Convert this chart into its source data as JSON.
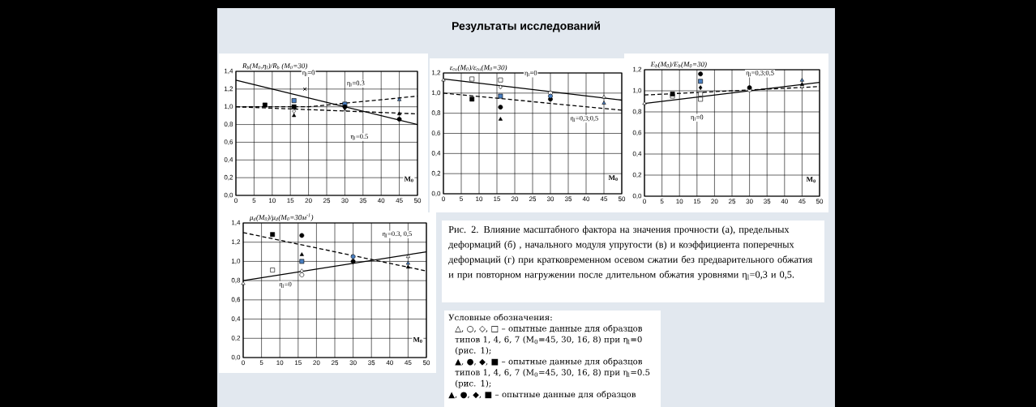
{
  "chart_data": [
    {
      "type": "scatter",
      "ylabel": "R$_{b}$(M$_{0}$,η$_{l}$)/R$_{b}$ (M$_{0}$=30)",
      "xlabel": "M$_{0}$",
      "xlim": [
        0,
        50
      ],
      "xticks": [
        0,
        5,
        10,
        15,
        20,
        25,
        30,
        35,
        40,
        45,
        50
      ],
      "ylim": [
        0,
        1.4
      ],
      "yticks": [
        {
          "value": 0,
          "label": "0,0"
        },
        {
          "value": 0.2,
          "label": "0,2"
        },
        {
          "value": 0.4,
          "label": "0,4"
        },
        {
          "value": 0.6,
          "label": "0,6"
        },
        {
          "value": 0.8,
          "label": "0,8"
        },
        {
          "value": 1.0,
          "label": "1,0"
        },
        {
          "value": 1.2,
          "label": "1,2"
        },
        {
          "value": 1.4,
          "label": "1,4"
        }
      ],
      "grid": true,
      "series": [
        {
          "type": "line",
          "color": "#000000",
          "line_style": "solid",
          "marker": "none",
          "x": [
            0,
            50
          ],
          "values": [
            1.3,
            0.8
          ]
        },
        {
          "type": "line",
          "color": "#000000",
          "line_style": "dashed",
          "marker": "none",
          "x": [
            0,
            20,
            50
          ],
          "values": [
            1.0,
            1.0,
            1.12
          ]
        },
        {
          "type": "line",
          "color": "#000000",
          "line_style": "dashed",
          "marker": "none",
          "x": [
            0,
            50
          ],
          "values": [
            1.0,
            0.92
          ]
        },
        {
          "color": "#000000",
          "marker": "square",
          "x": [
            8,
            16
          ],
          "values": [
            1.02,
            1.0
          ]
        },
        {
          "color": "#4a7fc1",
          "marker": "square",
          "x": [
            16,
            30
          ],
          "values": [
            1.07,
            1.03
          ]
        },
        {
          "color": "#000000",
          "marker": "triangle",
          "x": [
            16,
            45
          ],
          "values": [
            0.9,
            0.92
          ]
        },
        {
          "color": "#ffffff",
          "marker": "diamond",
          "x": [
            16
          ],
          "values": [
            0.95
          ]
        },
        {
          "color": "#000000",
          "marker": "cross",
          "x": [
            19,
            30
          ],
          "values": [
            1.2,
            0.97
          ]
        },
        {
          "color": "#000000",
          "marker": "circle",
          "x": [
            30,
            45
          ],
          "values": [
            1.0,
            0.86
          ]
        },
        {
          "color": "#4a7fc1",
          "marker": "triangle",
          "x": [
            45
          ],
          "values": [
            1.08
          ]
        }
      ],
      "annotations": [
        "η$_{l}$=0",
        "η$_{l}$=0.3",
        "η$_{l}$=0.5"
      ]
    },
    {
      "type": "scatter",
      "ylabel": "ε$_{cu}$(M$_{0}$)/ε$_{cu}$(M$_{0}$=30)",
      "xlabel": "M$_{0}$",
      "xlim": [
        0,
        50
      ],
      "xticks": [
        0,
        5,
        10,
        15,
        20,
        25,
        30,
        35,
        40,
        45,
        50
      ],
      "ylim": [
        0,
        1.2
      ],
      "yticks": [
        {
          "value": 0,
          "label": "0,0"
        },
        {
          "value": 0.2,
          "label": "0,2"
        },
        {
          "value": 0.4,
          "label": "0,4"
        },
        {
          "value": 0.6,
          "label": "0,6"
        },
        {
          "value": 0.8,
          "label": "0,8"
        },
        {
          "value": 1.0,
          "label": "1,0"
        },
        {
          "value": 1.2,
          "label": "1,2"
        }
      ],
      "grid": true,
      "series": [
        {
          "type": "line",
          "color": "#000000",
          "line_style": "solid",
          "marker": "none",
          "x": [
            0,
            50
          ],
          "values": [
            1.14,
            0.93
          ]
        },
        {
          "type": "line",
          "color": "#000000",
          "line_style": "dashed",
          "marker": "none",
          "x": [
            0,
            50
          ],
          "values": [
            1.0,
            0.83
          ]
        },
        {
          "color": "#ffffff",
          "marker": "square",
          "x": [
            8,
            16
          ],
          "values": [
            1.14,
            1.13
          ]
        },
        {
          "color": "#ffffff",
          "marker": "triangle",
          "x": [
            0,
            45
          ],
          "values": [
            1.13,
            0.96
          ]
        },
        {
          "color": "#ffffff",
          "marker": "diamond",
          "x": [
            16
          ],
          "values": [
            1.06
          ]
        },
        {
          "color": "#ffffff",
          "marker": "circle",
          "x": [
            30
          ],
          "values": [
            1.0
          ]
        },
        {
          "color": "#000000",
          "marker": "square",
          "x": [
            8
          ],
          "values": [
            0.94
          ]
        },
        {
          "color": "#4a7fc1",
          "marker": "square",
          "x": [
            16
          ],
          "values": [
            0.97
          ]
        },
        {
          "color": "#000000",
          "marker": "circle",
          "x": [
            16,
            30
          ],
          "values": [
            0.86,
            0.94
          ]
        },
        {
          "color": "#4a7fc1",
          "marker": "circle",
          "x": [
            30
          ],
          "values": [
            0.97
          ]
        },
        {
          "color": "#000000",
          "marker": "triangle",
          "x": [
            16
          ],
          "values": [
            0.74
          ]
        },
        {
          "color": "#4a7fc1",
          "marker": "triangle",
          "x": [
            45
          ],
          "values": [
            0.9
          ]
        }
      ],
      "annotations": [
        "η$_{l}$=0",
        "η$_{l}$=0,3;0,5"
      ]
    },
    {
      "type": "scatter",
      "ylabel": "E$_{b}$(M$_{0}$)/E$_{b}$(M$_{0}$=30)",
      "xlabel": "M$_{0}$",
      "xlim": [
        0,
        50
      ],
      "xticks": [
        0,
        5,
        10,
        15,
        20,
        25,
        30,
        35,
        40,
        45,
        50
      ],
      "ylim": [
        0,
        1.2
      ],
      "yticks": [
        {
          "value": 0,
          "label": "0,0"
        },
        {
          "value": 0.2,
          "label": "0,2"
        },
        {
          "value": 0.4,
          "label": "0,4"
        },
        {
          "value": 0.6,
          "label": "0,6"
        },
        {
          "value": 0.8,
          "label": "0,8"
        },
        {
          "value": 1.0,
          "label": "1,0"
        },
        {
          "value": 1.2,
          "label": "1,2"
        }
      ],
      "grid": true,
      "series": [
        {
          "type": "line",
          "color": "#000000",
          "line_style": "solid",
          "marker": "none",
          "x": [
            0,
            50
          ],
          "values": [
            0.88,
            1.08
          ]
        },
        {
          "type": "line",
          "color": "#000000",
          "line_style": "dashed",
          "marker": "none",
          "x": [
            0,
            50
          ],
          "values": [
            0.96,
            1.04
          ]
        },
        {
          "color": "#ffffff",
          "marker": "triangle",
          "x": [
            0,
            45
          ],
          "values": [
            0.88,
            1.04
          ]
        },
        {
          "color": "#ffffff",
          "marker": "square",
          "x": [
            8,
            16,
            16
          ],
          "values": [
            0.95,
            0.97,
            0.92
          ]
        },
        {
          "color": "#ffffff",
          "marker": "circle",
          "x": [
            30
          ],
          "values": [
            1.01
          ]
        },
        {
          "color": "#000000",
          "marker": "square",
          "x": [
            8
          ],
          "values": [
            0.97
          ]
        },
        {
          "color": "#000000",
          "marker": "circle",
          "x": [
            16,
            30
          ],
          "values": [
            1.16,
            1.03
          ]
        },
        {
          "color": "#4a7fc1",
          "marker": "square",
          "x": [
            16
          ],
          "values": [
            1.09
          ]
        },
        {
          "color": "#000000",
          "marker": "diamond",
          "x": [
            16
          ],
          "values": [
            1.03
          ]
        },
        {
          "color": "#4a7fc1",
          "marker": "triangle",
          "x": [
            45
          ],
          "values": [
            1.1
          ]
        },
        {
          "color": "#000000",
          "marker": "triangle",
          "x": [
            45
          ],
          "values": [
            1.06
          ]
        }
      ],
      "annotations": [
        "η$_{l}$=0,3;0,5",
        "η$_{l}$=0"
      ]
    },
    {
      "type": "scatter",
      "ylabel": "μ$_{d}$(M$_{0}$)/μ$_{d}$(M$_{0}$=30м$^{-1}$)",
      "xlabel": "M$_{0}$",
      "xlim": [
        0,
        50
      ],
      "xticks": [
        0,
        5,
        10,
        15,
        20,
        25,
        30,
        35,
        40,
        45,
        50
      ],
      "ylim": [
        0,
        1.4
      ],
      "yticks": [
        {
          "value": 0,
          "label": "0,0"
        },
        {
          "value": 0.2,
          "label": "0,2"
        },
        {
          "value": 0.4,
          "label": "0,4"
        },
        {
          "value": 0.6,
          "label": "0,6"
        },
        {
          "value": 0.8,
          "label": "0,8"
        },
        {
          "value": 1.0,
          "label": "1,0"
        },
        {
          "value": 1.2,
          "label": "1,2"
        },
        {
          "value": 1.4,
          "label": "1,4"
        }
      ],
      "grid": true,
      "series": [
        {
          "type": "line",
          "color": "#000000",
          "line_style": "solid",
          "marker": "none",
          "x": [
            0,
            50
          ],
          "values": [
            0.8,
            1.1
          ]
        },
        {
          "type": "line",
          "color": "#000000",
          "line_style": "dashed",
          "marker": "none",
          "x": [
            0,
            50
          ],
          "values": [
            1.3,
            0.9
          ]
        },
        {
          "color": "#000000",
          "marker": "square",
          "x": [
            8
          ],
          "values": [
            1.28
          ]
        },
        {
          "color": "#000000",
          "marker": "circle",
          "x": [
            16,
            30
          ],
          "values": [
            1.27,
            1.0
          ]
        },
        {
          "color": "#ffffff",
          "marker": "square",
          "x": [
            8
          ],
          "values": [
            0.91
          ]
        },
        {
          "color": "#000000",
          "marker": "triangle",
          "x": [
            16,
            45
          ],
          "values": [
            1.07,
            0.94
          ]
        },
        {
          "color": "#4a7fc1",
          "marker": "square",
          "x": [
            16
          ],
          "values": [
            1.0
          ]
        },
        {
          "color": "#ffffff",
          "marker": "diamond",
          "x": [
            16
          ],
          "values": [
            0.9
          ]
        },
        {
          "color": "#ffffff",
          "marker": "circle",
          "x": [
            16
          ],
          "values": [
            0.86
          ]
        },
        {
          "color": "#ffffff",
          "marker": "triangle",
          "x": [
            0,
            45
          ],
          "values": [
            0.77,
            1.05
          ]
        },
        {
          "color": "#4a7fc1",
          "marker": "circle",
          "x": [
            30
          ],
          "values": [
            1.05
          ]
        },
        {
          "color": "#4a7fc1",
          "marker": "triangle",
          "x": [
            45
          ],
          "values": [
            0.98
          ]
        }
      ],
      "annotations": [
        "η$_{l}$=0.3, 0,5",
        "η$_{l}$=0"
      ]
    },
    {
      "type": "other",
      "title": "Результаты исследований",
      "annotations": [
        "Рис. 2. Влияние масштабного фактора на значения прочности (а), предельных деформаций (б) , начального модуля упругости (в) и коэффициента поперечных деформаций (г) при кратковременном осевом сжатии без предварительного обжатия и  при повторном нагружении после длительном обжатия уровнями η$_{l}$=0,3 и 0,5."
      ]
    },
    {
      "type": "other",
      "annotations": [
        "Условные обозначения:",
        "△, ○, ◇, □ – опытные данные для образцов типов 1, 4, 6, 7  (M$_{0}$=45, 30, 16, 8)  при η$_{l}$=0 (рис. 1);",
        "▲, ●, ◆, ■ – опытные данные для образцов типов 1, 4, 6, 7  (M$_{0}$=45, 30, 16, 8)  при η$_{l}$=0.5 (рис. 1);",
        "▲, ●, ◆, ■ – опытные данные для образцов"
      ]
    }
  ]
}
